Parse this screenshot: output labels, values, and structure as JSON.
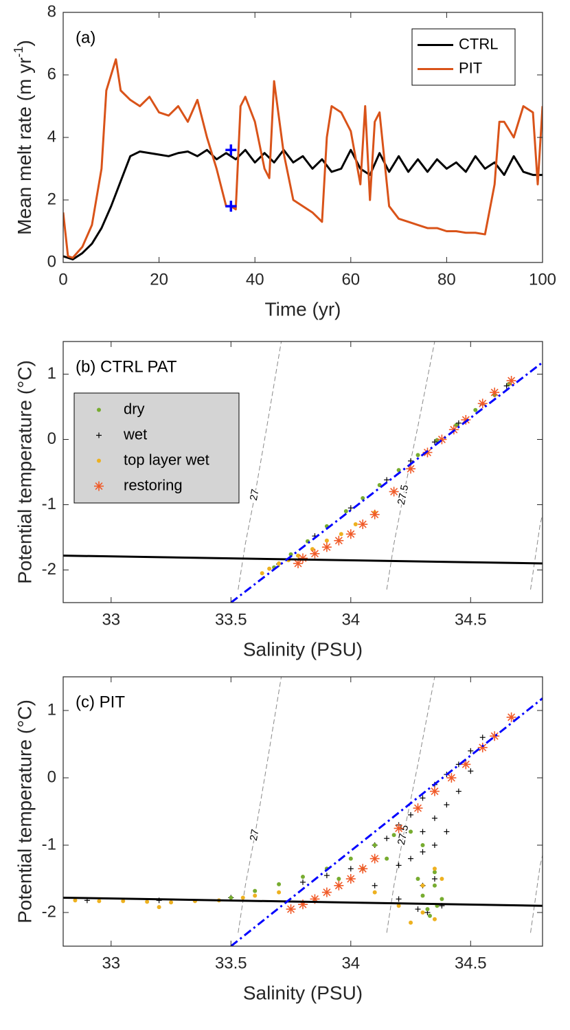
{
  "chart_data": [
    {
      "type": "line",
      "annotation": "(a)",
      "xlabel": "Time (yr)",
      "ylabel": [
        "Mean melt rate (m yr",
        "-1",
        ")"
      ],
      "xlim": [
        0,
        100
      ],
      "xticks": [
        0,
        20,
        40,
        60,
        80,
        100
      ],
      "ylim": [
        0,
        8
      ],
      "yticks": [
        0,
        2,
        4,
        6,
        8
      ],
      "legend": "upper right",
      "series": [
        {
          "name": "CTRL",
          "color": "#000000",
          "x": [
            0,
            2,
            4,
            6,
            8,
            10,
            12,
            14,
            16,
            18,
            20,
            22,
            24,
            26,
            28,
            30,
            32,
            34,
            36,
            38,
            40,
            42,
            44,
            46,
            48,
            50,
            52,
            54,
            56,
            58,
            60,
            62,
            64,
            66,
            68,
            70,
            72,
            74,
            76,
            78,
            80,
            82,
            84,
            86,
            88,
            90,
            92,
            94,
            96,
            98,
            100
          ],
          "values": [
            0.2,
            0.1,
            0.3,
            0.6,
            1.1,
            1.8,
            2.6,
            3.4,
            3.55,
            3.5,
            3.45,
            3.4,
            3.5,
            3.55,
            3.4,
            3.6,
            3.3,
            3.5,
            3.3,
            3.6,
            3.2,
            3.5,
            3.2,
            3.6,
            3.2,
            3.4,
            3.0,
            3.3,
            2.9,
            3.0,
            3.6,
            3.0,
            2.8,
            3.5,
            2.9,
            3.4,
            2.9,
            3.3,
            2.9,
            3.3,
            3.0,
            3.2,
            2.9,
            3.4,
            3.0,
            3.2,
            2.8,
            3.4,
            2.9,
            2.8,
            2.8
          ]
        },
        {
          "name": "PIT",
          "color": "#d95319",
          "x": [
            0,
            1,
            2,
            4,
            6,
            8,
            9,
            10,
            11,
            12,
            14,
            16,
            18,
            20,
            22,
            24,
            26,
            28,
            30,
            32,
            34,
            35,
            36,
            37,
            38,
            40,
            42,
            43,
            44,
            46,
            48,
            50,
            52,
            54,
            55,
            56,
            58,
            60,
            62,
            63,
            64,
            65,
            66,
            68,
            70,
            72,
            74,
            76,
            78,
            80,
            82,
            84,
            86,
            88,
            90,
            91,
            92,
            94,
            96,
            98,
            99,
            100
          ],
          "values": [
            1.6,
            0.2,
            0.15,
            0.5,
            1.2,
            3.0,
            5.5,
            6.0,
            6.5,
            5.5,
            5.2,
            5.0,
            5.3,
            4.8,
            4.7,
            5.0,
            4.5,
            5.2,
            4.0,
            3.0,
            1.8,
            1.8,
            1.7,
            5.0,
            5.3,
            4.5,
            3.0,
            2.7,
            5.8,
            3.5,
            2.0,
            1.8,
            1.6,
            1.3,
            4.0,
            5.0,
            4.8,
            4.2,
            2.5,
            5.0,
            2.0,
            4.5,
            4.8,
            1.8,
            1.4,
            1.3,
            1.2,
            1.1,
            1.1,
            1.0,
            1.0,
            0.95,
            0.95,
            0.9,
            2.5,
            4.5,
            4.5,
            4.0,
            5.0,
            4.8,
            2.5,
            5.0
          ]
        }
      ],
      "markers": {
        "color": "#0000ff",
        "x": [
          35,
          35
        ],
        "y": [
          3.6,
          1.8
        ]
      }
    },
    {
      "type": "scatter",
      "annotation": "(b) CTRL PAT",
      "xlabel": "Salinity (PSU)",
      "ylabel": "Potential temperature (°C)",
      "xlim": [
        32.8,
        34.8
      ],
      "xticks": [
        33,
        33.5,
        34,
        34.5
      ],
      "ylim": [
        -2.5,
        1.5
      ],
      "yticks": [
        -2,
        -1,
        0,
        1
      ],
      "legend": "upper left",
      "lines": [
        {
          "color": "#000000",
          "style": "solid",
          "x": [
            32.8,
            34.8
          ],
          "y": [
            -1.78,
            -1.9
          ]
        },
        {
          "color": "#0000ff",
          "style": "dashdot",
          "x": [
            33.5,
            34.8
          ],
          "y": [
            -2.5,
            1.18
          ]
        }
      ],
      "contours": [
        {
          "label": "27",
          "x": [
            33.53,
            33.56,
            33.6,
            33.65,
            33.71
          ],
          "y": [
            -2.3,
            -1.6,
            -0.85,
            0.2,
            1.5
          ]
        },
        {
          "label": "27.5",
          "x": [
            34.15,
            34.18,
            34.22,
            34.28,
            34.35
          ],
          "y": [
            -2.3,
            -1.6,
            -0.85,
            0.2,
            1.5
          ]
        },
        {
          "x": [
            34.75,
            34.77,
            34.79,
            34.8
          ],
          "y": [
            -2.3,
            -1.8,
            -1.3,
            -1.15
          ]
        }
      ],
      "series": [
        {
          "name": "dry",
          "color": "#77ac30",
          "marker": "dot",
          "x": [
            33.68,
            33.75,
            33.82,
            33.9,
            33.98,
            34.05,
            34.12,
            34.2,
            34.28,
            34.36,
            34.44,
            34.52,
            34.6,
            34.66
          ],
          "y": [
            -1.96,
            -1.76,
            -1.56,
            -1.33,
            -1.1,
            -0.9,
            -0.7,
            -0.47,
            -0.24,
            -0.01,
            0.22,
            0.45,
            0.68,
            0.85
          ]
        },
        {
          "name": "wet",
          "color": "#000000",
          "marker": "plus",
          "x": [
            33.7,
            33.85,
            34.0,
            34.15,
            34.25,
            34.35,
            34.45,
            34.55,
            34.65
          ],
          "y": [
            -1.91,
            -1.48,
            -1.05,
            -0.62,
            -0.33,
            -0.04,
            0.25,
            0.53,
            0.82
          ]
        },
        {
          "name": "top layer wet",
          "color": "#edb120",
          "marker": "dot",
          "x": [
            33.63,
            33.66,
            33.7,
            33.74,
            33.78,
            33.84,
            33.9,
            33.96,
            34.02,
            34.1
          ],
          "y": [
            -2.05,
            -1.98,
            -1.9,
            -1.85,
            -1.78,
            -1.68,
            -1.55,
            -1.45,
            -1.3,
            -1.12
          ]
        },
        {
          "name": "restoring",
          "color": "#f05a28",
          "marker": "asterisk",
          "x": [
            33.78,
            33.8,
            33.85,
            33.9,
            33.95,
            34.0,
            34.05,
            34.1,
            34.18,
            34.25,
            34.32,
            34.38,
            34.43,
            34.48,
            34.55,
            34.6,
            34.67
          ],
          "y": [
            -1.9,
            -1.82,
            -1.75,
            -1.65,
            -1.55,
            -1.45,
            -1.3,
            -1.15,
            -0.8,
            -0.45,
            -0.2,
            0.0,
            0.15,
            0.3,
            0.55,
            0.72,
            0.9
          ]
        }
      ]
    },
    {
      "type": "scatter",
      "annotation": "(c) PIT",
      "xlabel": "Salinity (PSU)",
      "ylabel": "Potential temperature (°C)",
      "xlim": [
        32.8,
        34.8
      ],
      "xticks": [
        33,
        33.5,
        34,
        34.5
      ],
      "ylim": [
        -2.5,
        1.5
      ],
      "yticks": [
        -2,
        -1,
        0,
        1
      ],
      "lines": [
        {
          "color": "#000000",
          "style": "solid",
          "x": [
            32.8,
            34.8
          ],
          "y": [
            -1.78,
            -1.9
          ]
        },
        {
          "color": "#0000ff",
          "style": "dashdot",
          "x": [
            33.5,
            34.8
          ],
          "y": [
            -2.5,
            1.18
          ]
        }
      ],
      "contours": [
        {
          "label": "27",
          "x": [
            33.53,
            33.56,
            33.6,
            33.65,
            33.71
          ],
          "y": [
            -2.3,
            -1.6,
            -0.85,
            0.2,
            1.5
          ]
        },
        {
          "label": "27.5",
          "x": [
            34.15,
            34.18,
            34.22,
            34.28,
            34.35
          ],
          "y": [
            -2.3,
            -1.6,
            -0.85,
            0.2,
            1.5
          ]
        },
        {
          "x": [
            34.75,
            34.77,
            34.79,
            34.8
          ],
          "y": [
            -2.3,
            -1.8,
            -1.3,
            -1.15
          ]
        }
      ],
      "series": [
        {
          "name": "wet",
          "color": "#000000",
          "marker": "plus",
          "x": [
            34.1,
            34.15,
            34.2,
            34.25,
            34.3,
            34.35,
            34.4,
            34.45,
            34.5,
            34.55,
            34.3,
            34.35,
            34.4,
            34.2,
            34.25,
            34.3,
            34.35,
            34.4,
            34.3,
            34.35,
            34.38,
            34.1,
            34.2,
            33.8,
            33.9,
            34.0,
            33.5,
            33.2,
            32.9,
            34.45,
            34.5,
            34.28,
            34.32
          ],
          "y": [
            -1.0,
            -0.9,
            -0.7,
            -0.55,
            -0.3,
            -0.1,
            0.05,
            0.2,
            0.4,
            0.6,
            -0.8,
            -0.6,
            -0.4,
            -1.3,
            -1.2,
            -1.1,
            -1.0,
            -0.8,
            -1.6,
            -1.5,
            -1.9,
            -1.6,
            -1.8,
            -1.55,
            -1.45,
            -1.35,
            -1.78,
            -1.82,
            -1.82,
            -0.2,
            0.1,
            -1.95,
            -2.0
          ]
        },
        {
          "name": "dry",
          "color": "#77ac30",
          "marker": "dot",
          "x": [
            33.5,
            33.6,
            33.7,
            33.8,
            33.9,
            34.0,
            34.1,
            34.18,
            33.95,
            34.05,
            34.15,
            34.25,
            34.3,
            34.35,
            34.38,
            34.28,
            34.3,
            34.32,
            34.33,
            34.36,
            34.35
          ],
          "y": [
            -1.78,
            -1.68,
            -1.58,
            -1.47,
            -1.35,
            -1.2,
            -1.0,
            -0.85,
            -1.5,
            -1.35,
            -1.2,
            -0.8,
            -1.0,
            -1.4,
            -1.8,
            -1.5,
            -1.75,
            -1.95,
            -2.05,
            -1.9,
            -1.6
          ]
        },
        {
          "name": "top layer wet",
          "color": "#edb120",
          "marker": "dot",
          "x": [
            32.85,
            32.95,
            33.05,
            33.15,
            33.25,
            33.35,
            33.45,
            33.55,
            33.6,
            33.7,
            33.2,
            34.1,
            34.2,
            34.3,
            34.35,
            34.38,
            34.35,
            34.25,
            34.3
          ],
          "y": [
            -1.82,
            -1.83,
            -1.83,
            -1.84,
            -1.85,
            -1.83,
            -1.82,
            -1.78,
            -1.75,
            -1.7,
            -1.92,
            -1.7,
            -1.9,
            -1.6,
            -1.35,
            -1.5,
            -2.1,
            -2.15,
            -2.0
          ]
        },
        {
          "name": "restoring",
          "color": "#f05a28",
          "marker": "asterisk",
          "x": [
            33.75,
            33.8,
            33.85,
            33.9,
            33.95,
            34.0,
            34.05,
            34.1,
            34.2,
            34.28,
            34.35,
            34.42,
            34.48,
            34.55,
            34.6,
            34.67
          ],
          "y": [
            -1.95,
            -1.88,
            -1.8,
            -1.7,
            -1.6,
            -1.5,
            -1.35,
            -1.2,
            -0.75,
            -0.45,
            -0.2,
            0.0,
            0.2,
            0.45,
            0.62,
            0.9
          ]
        }
      ]
    }
  ]
}
